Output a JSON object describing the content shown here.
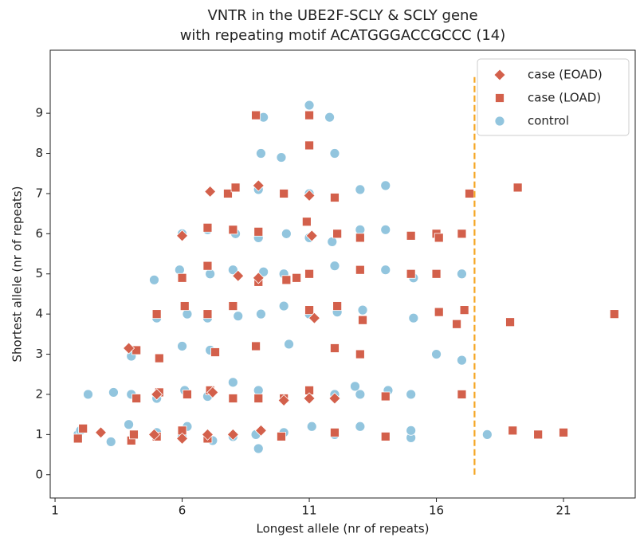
{
  "chart_data": {
    "type": "scatter",
    "title": "VNTR in the UBE2F-SCLY & SCLY gene",
    "subtitle": "with repeating motif ACATGGGACCGCCC (14)",
    "x_label": "Longest allele (nr of repeats)",
    "y_label": "Shortest allele (nr of repeats)",
    "xlim": [
      0.81,
      23.82
    ],
    "ylim": [
      -0.58,
      10.57
    ],
    "xticks": [
      1,
      6,
      11,
      16,
      21
    ],
    "yticks": [
      0,
      1,
      2,
      3,
      4,
      5,
      6,
      7,
      8,
      9
    ],
    "legend": "upper right",
    "vline": {
      "x": 17.5,
      "y": [
        0,
        9.9
      ],
      "color": "#f5a623"
    },
    "series": [
      {
        "name": "case (EOAD)",
        "marker": "diamond",
        "color": "#d3604b",
        "x": [
          2.8,
          3.9,
          4.9,
          5.0,
          6.0,
          6.0,
          7.1,
          7.2,
          8.2,
          8.0,
          9.0,
          9.0,
          9.1,
          10.0,
          11.0,
          11.1,
          11.2,
          11.0,
          12.0,
          7.0
        ],
        "values": [
          1.05,
          3.15,
          1.0,
          2.0,
          5.95,
          0.9,
          7.05,
          2.05,
          4.95,
          1.0,
          7.2,
          4.9,
          1.1,
          1.85,
          6.95,
          5.95,
          3.9,
          1.9,
          1.9,
          1.0
        ]
      },
      {
        "name": "case (LOAD)",
        "marker": "square",
        "color": "#d3604b",
        "x": [
          1.9,
          2.1,
          4.0,
          4.2,
          4.1,
          4.2,
          5.0,
          5.1,
          5.0,
          5.1,
          6.0,
          6.0,
          6.1,
          6.2,
          7.0,
          7.0,
          7.0,
          7.1,
          7.0,
          7.3,
          7.8,
          8.1,
          8.0,
          8.0,
          8.0,
          8.9,
          8.9,
          9.0,
          9.0,
          9.0,
          10.0,
          10.1,
          10.0,
          9.9,
          10.5,
          11.0,
          11.0,
          10.9,
          11.0,
          11.0,
          11.0,
          12.0,
          12.0,
          12.1,
          12.0,
          12.1,
          13.0,
          13.0,
          13.1,
          13.0,
          14.0,
          14.0,
          15.0,
          15.0,
          16.0,
          16.0,
          16.1,
          16.1,
          16.8,
          17.0,
          17.1,
          17.0,
          17.3,
          19.0,
          18.9,
          19.2,
          20.0,
          21.0,
          23.0
        ],
        "values": [
          0.9,
          1.15,
          0.85,
          3.1,
          1.0,
          1.9,
          4.0,
          2.9,
          0.95,
          2.05,
          4.9,
          1.1,
          4.2,
          2.0,
          6.15,
          5.2,
          4.0,
          2.1,
          0.9,
          3.05,
          7.0,
          7.15,
          1.9,
          4.2,
          6.1,
          8.95,
          3.2,
          4.8,
          6.05,
          1.9,
          7.0,
          4.85,
          1.9,
          0.95,
          4.9,
          8.95,
          8.2,
          6.3,
          5.0,
          2.1,
          4.1,
          6.9,
          3.15,
          4.2,
          1.05,
          6.0,
          5.9,
          3.0,
          3.85,
          5.1,
          1.95,
          0.95,
          5.95,
          5.0,
          6.0,
          5.0,
          4.05,
          5.9,
          3.75,
          6.0,
          4.1,
          2.0,
          7.0,
          1.1,
          3.8,
          7.15,
          1.0,
          1.05,
          4.0
        ]
      },
      {
        "name": "control",
        "marker": "circle",
        "color": "#92c5de",
        "x": [
          1.9,
          2.0,
          3.2,
          3.3,
          2.3,
          3.9,
          4.0,
          4.0,
          4.9,
          5.0,
          5.0,
          5.0,
          5.9,
          6.0,
          6.0,
          6.1,
          6.0,
          6.2,
          6.2,
          7.0,
          7.1,
          7.0,
          7.0,
          7.2,
          7.1,
          8.0,
          8.0,
          8.1,
          8.0,
          8.2,
          9.0,
          9.0,
          9.1,
          9.2,
          9.0,
          9.1,
          9.0,
          9.2,
          8.9,
          9.9,
          10.0,
          10.0,
          10.1,
          10.2,
          10.0,
          11.0,
          11.0,
          11.1,
          11.0,
          11.0,
          11.8,
          11.9,
          12.0,
          12.0,
          12.0,
          12.0,
          12.1,
          13.0,
          13.0,
          13.0,
          13.1,
          13.0,
          14.0,
          14.0,
          14.1,
          14.0,
          12.8,
          15.0,
          15.0,
          15.0,
          15.1,
          15.1,
          16.0,
          17.0,
          17.0,
          18.0,
          14.0
        ],
        "values": [
          1.0,
          1.1,
          0.82,
          2.05,
          2.0,
          1.25,
          2.0,
          2.95,
          4.85,
          1.9,
          1.05,
          3.9,
          5.1,
          6.0,
          3.2,
          2.1,
          0.95,
          4.0,
          1.2,
          6.1,
          5.0,
          3.9,
          1.95,
          0.85,
          3.1,
          5.1,
          2.3,
          6.0,
          0.95,
          3.95,
          7.1,
          5.9,
          8.0,
          8.9,
          0.65,
          4.0,
          2.1,
          5.05,
          1.0,
          7.9,
          1.05,
          4.2,
          6.0,
          3.25,
          5.0,
          9.2,
          7.0,
          1.2,
          5.9,
          4.0,
          8.9,
          5.8,
          8.0,
          2.0,
          5.2,
          1.0,
          4.05,
          7.1,
          1.2,
          6.1,
          4.1,
          2.0,
          6.1,
          5.1,
          2.1,
          7.2,
          2.2,
          0.92,
          1.1,
          2.0,
          3.9,
          4.9,
          3.0,
          2.85,
          5.0,
          1.0,
          0.95
        ]
      }
    ]
  }
}
